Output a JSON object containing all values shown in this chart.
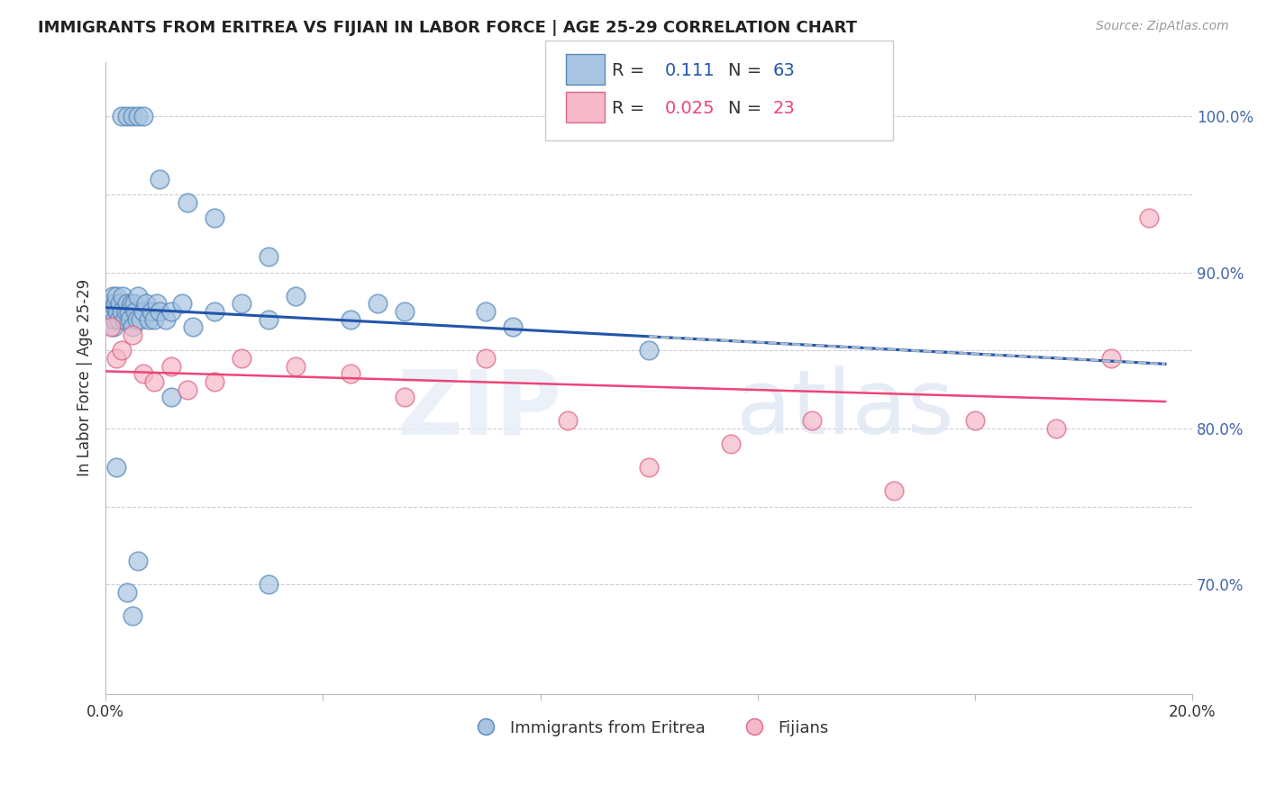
{
  "title": "IMMIGRANTS FROM ERITREA VS FIJIAN IN LABOR FORCE | AGE 25-29 CORRELATION CHART",
  "source": "Source: ZipAtlas.com",
  "ylabel": "In Labor Force | Age 25-29",
  "xlim": [
    0.0,
    20.0
  ],
  "ylim": [
    63.0,
    103.5
  ],
  "blue_face_color": "#A8C4E0",
  "blue_edge_color": "#5588BB",
  "pink_face_color": "#F4B8C8",
  "pink_edge_color": "#DD6688",
  "blue_line_color": "#2255AA",
  "pink_line_color": "#EE4477",
  "dashed_line_color": "#AABBCC",
  "grid_color": "#CCCCDD",
  "legend_R_blue": "0.111",
  "legend_N_blue": "63",
  "legend_R_pink": "0.025",
  "legend_N_pink": "23",
  "legend_label_blue": "Immigrants from Eritrea",
  "legend_label_pink": "Fijians",
  "blue_x": [
    0.05,
    0.07,
    0.08,
    0.1,
    0.12,
    0.13,
    0.15,
    0.17,
    0.18,
    0.2,
    0.22,
    0.25,
    0.27,
    0.3,
    0.32,
    0.35,
    0.38,
    0.4,
    0.42,
    0.45,
    0.48,
    0.5,
    0.52,
    0.55,
    0.58,
    0.6,
    0.65,
    0.7,
    0.75,
    0.8,
    0.85,
    0.9,
    0.95,
    1.0,
    1.1,
    1.2,
    1.4,
    1.6,
    2.0,
    2.5,
    3.0,
    3.5,
    4.5,
    5.5,
    7.5,
    0.3,
    0.4,
    0.5,
    0.6,
    0.7,
    1.0,
    1.5,
    2.0,
    3.0,
    5.0,
    7.0,
    10.0,
    0.2,
    0.6,
    0.4,
    0.5,
    1.2,
    3.0
  ],
  "blue_y": [
    87.5,
    88.0,
    87.0,
    87.5,
    88.0,
    88.5,
    86.5,
    87.0,
    88.0,
    88.5,
    87.5,
    87.0,
    88.0,
    87.5,
    88.5,
    87.0,
    87.5,
    88.0,
    87.5,
    87.0,
    88.0,
    86.5,
    88.0,
    87.5,
    87.0,
    88.5,
    87.0,
    87.5,
    88.0,
    87.0,
    87.5,
    87.0,
    88.0,
    87.5,
    87.0,
    87.5,
    88.0,
    86.5,
    87.5,
    88.0,
    87.0,
    88.5,
    87.0,
    87.5,
    86.5,
    100.0,
    100.0,
    100.0,
    100.0,
    100.0,
    96.0,
    94.5,
    93.5,
    91.0,
    88.0,
    87.5,
    85.0,
    77.5,
    71.5,
    69.5,
    68.0,
    82.0,
    70.0
  ],
  "pink_x": [
    0.1,
    0.2,
    0.3,
    0.5,
    0.7,
    0.9,
    1.2,
    1.5,
    2.0,
    2.5,
    3.5,
    4.5,
    5.5,
    7.0,
    8.5,
    10.0,
    11.5,
    13.0,
    14.5,
    16.0,
    17.5,
    18.5,
    19.2
  ],
  "pink_y": [
    86.5,
    84.5,
    85.0,
    86.0,
    83.5,
    83.0,
    84.0,
    82.5,
    83.0,
    84.5,
    84.0,
    83.5,
    82.0,
    84.5,
    80.5,
    77.5,
    79.0,
    80.5,
    76.0,
    80.5,
    80.0,
    84.5,
    93.5
  ]
}
